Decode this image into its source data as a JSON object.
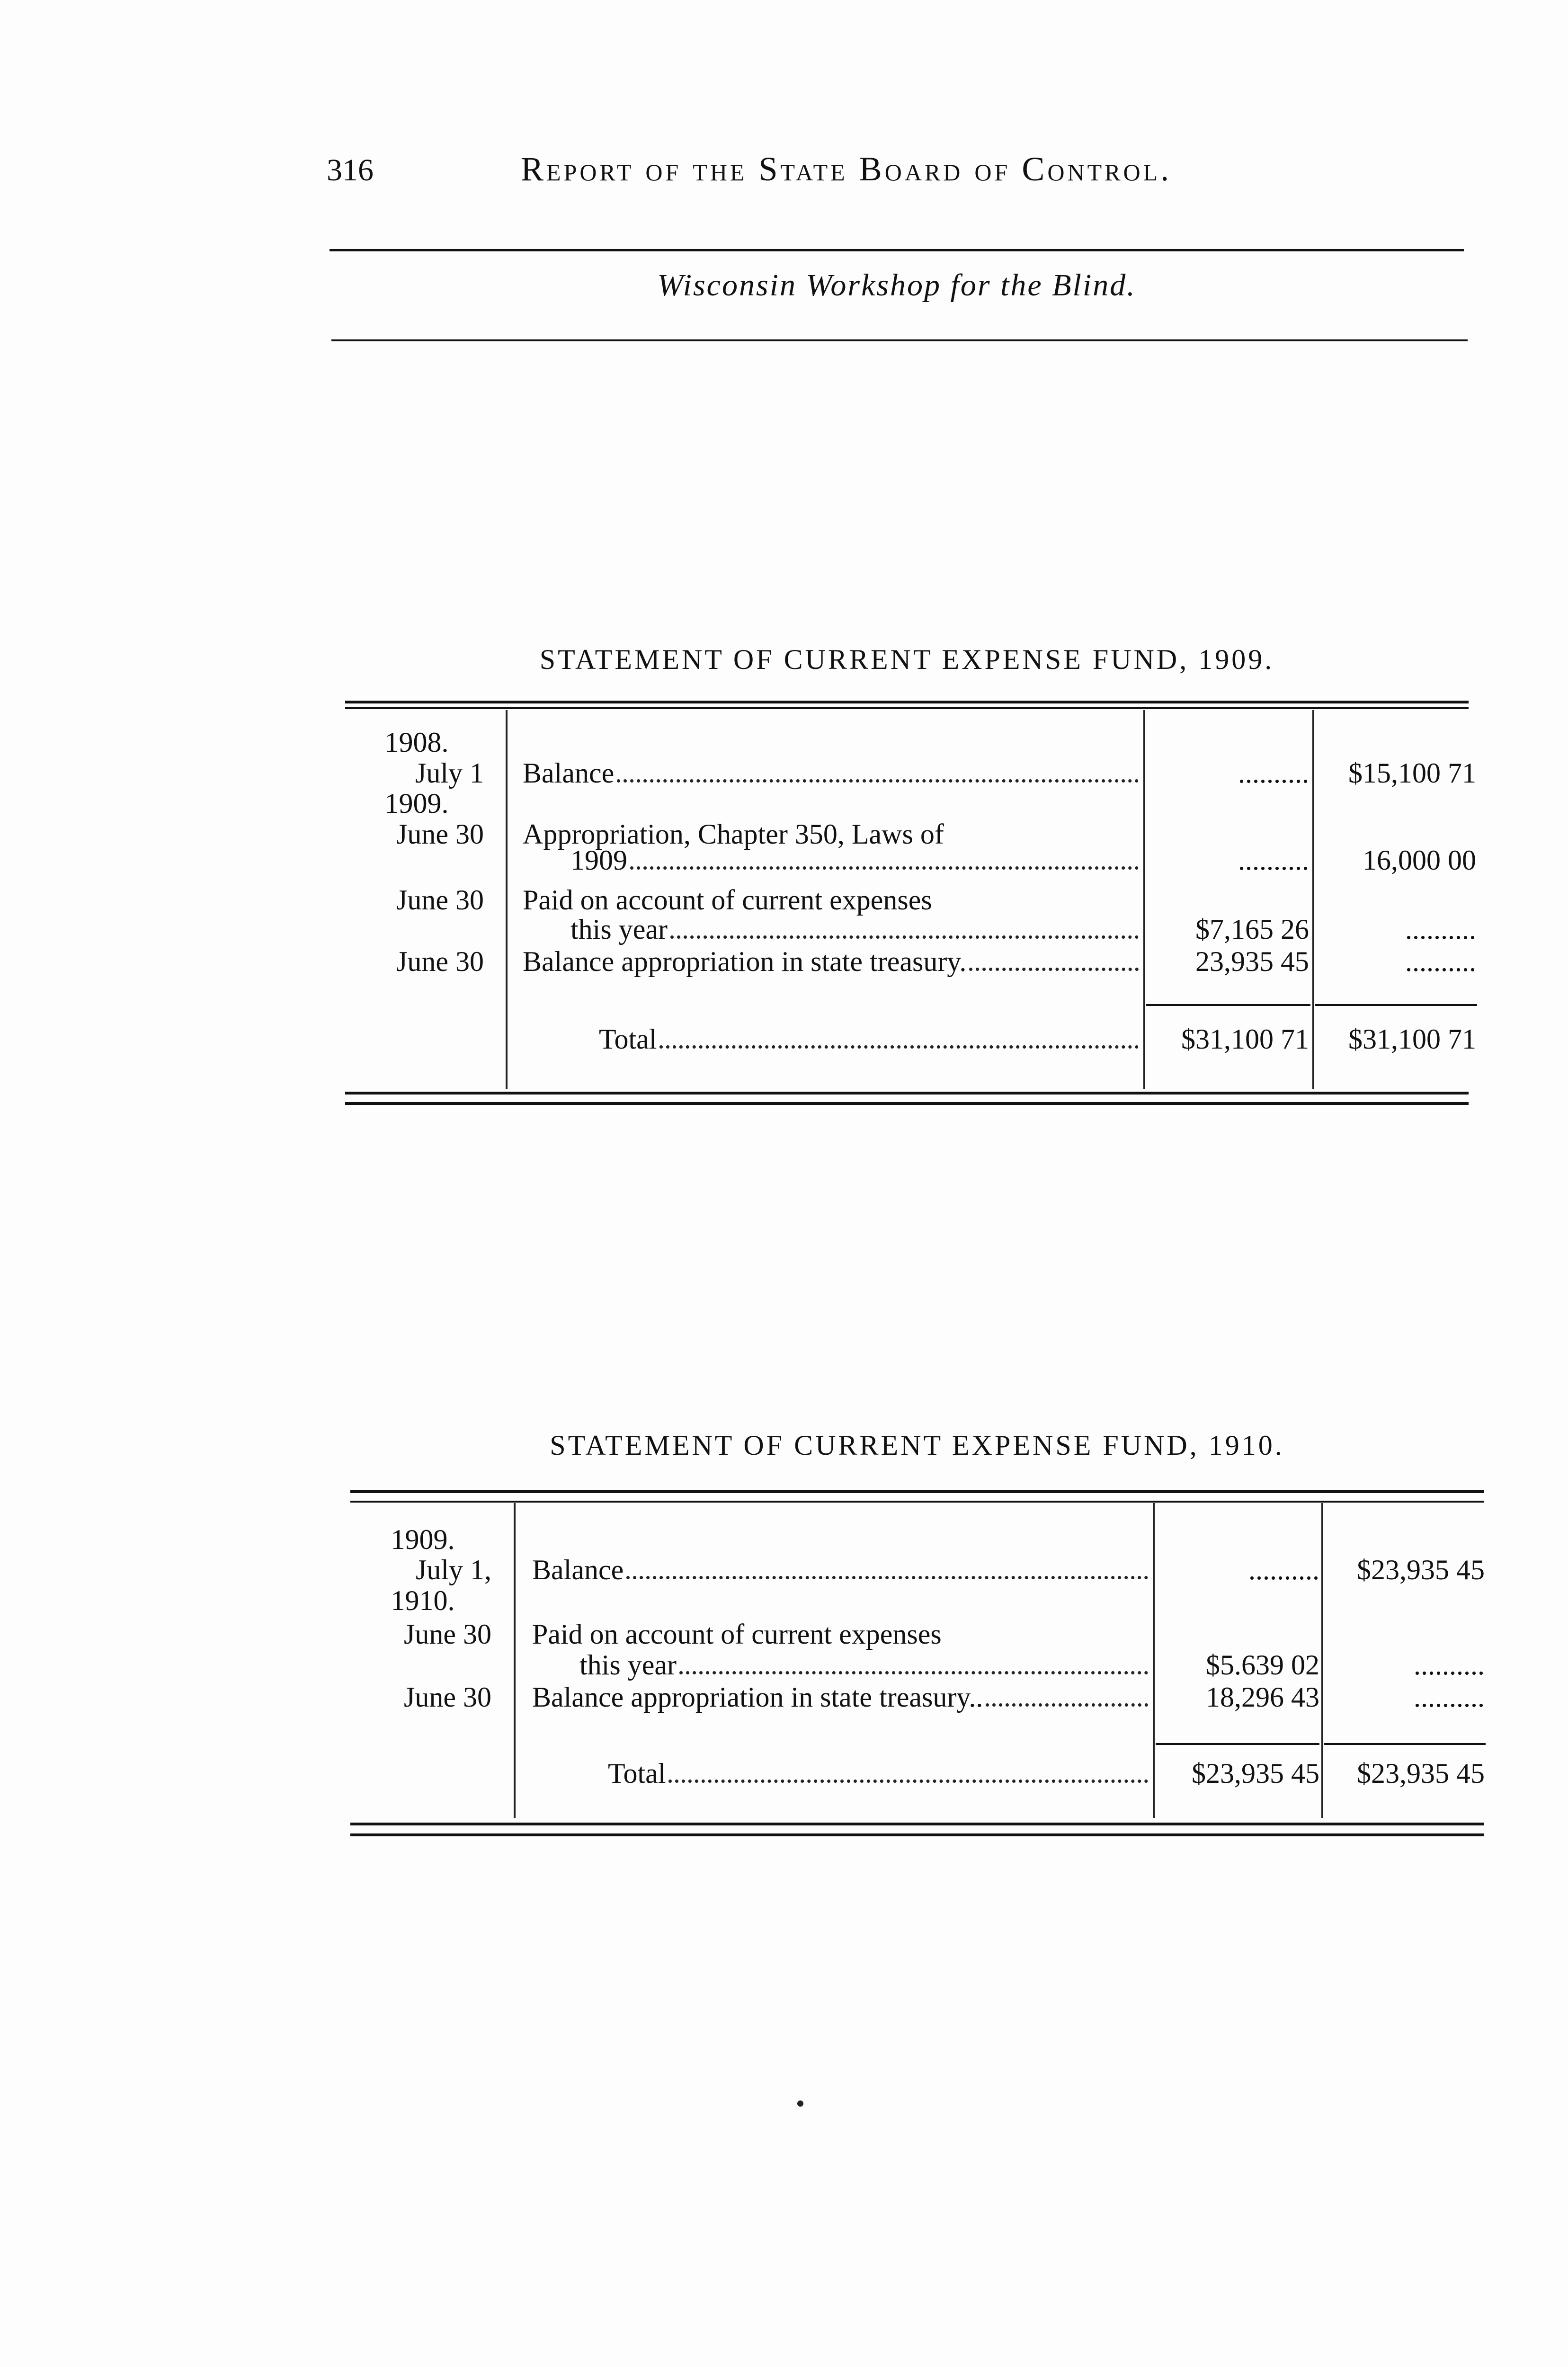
{
  "header": {
    "page_number": "316",
    "running_title": "Report of the State Board of Control.",
    "section_title": "Wisconsin Workshop for the Blind."
  },
  "tables": [
    {
      "title": "STATEMENT OF CURRENT EXPENSE FUND, 1909.",
      "rows": [
        {
          "year": "1908.",
          "date": "July 1",
          "desc": [
            "Balance"
          ],
          "col1": "..........",
          "col2": "$15,100 71"
        },
        {
          "year": "1909.",
          "date": "June 30",
          "desc": [
            "Appropriation, Chapter 350, Laws of",
            "1909"
          ],
          "col1": "..........",
          "col2": "16,000 00"
        },
        {
          "year": "",
          "date": "June 30",
          "desc": [
            "Paid on account of current expenses",
            "this year"
          ],
          "col1": "$7,165 26",
          "col2": ".........."
        },
        {
          "year": "",
          "date": "June 30",
          "desc": [
            "Balance appropriation in state treasury."
          ],
          "col1": "23,935 45",
          "col2": ".........."
        }
      ],
      "total": {
        "label": "Total",
        "col1": "$31,100 71",
        "col2": "$31,100 71"
      }
    },
    {
      "title": "STATEMENT OF CURRENT EXPENSE FUND, 1910.",
      "rows": [
        {
          "year": "1909.",
          "date": "July 1,",
          "desc": [
            "Balance"
          ],
          "col1": "..........",
          "col2": "$23,935 45"
        },
        {
          "year": "1910.",
          "date": "June 30",
          "desc": [
            "Paid on account of current expenses",
            "this year"
          ],
          "col1": "$5.639 02",
          "col2": ".........."
        },
        {
          "year": "",
          "date": "June 30",
          "desc": [
            "Balance appropriation in state treasury.."
          ],
          "col1": "18,296 43",
          "col2": ".........."
        }
      ],
      "total": {
        "label": "Total",
        "col1": "$23,935 45",
        "col2": "$23,935 45"
      }
    }
  ]
}
